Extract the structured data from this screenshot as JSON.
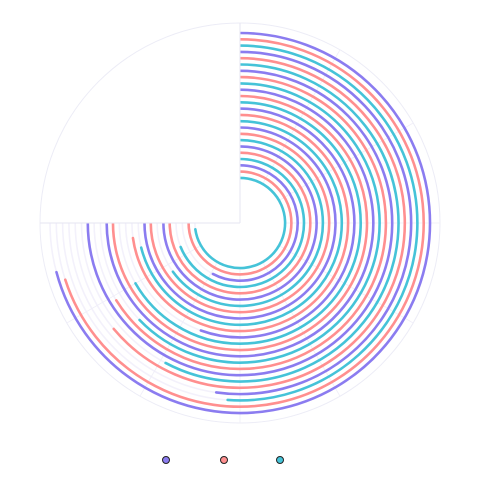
{
  "chart_data": {
    "type": "radial-bar",
    "title": "",
    "angle_range_deg": [
      0,
      360
    ],
    "start_angle_deg": 0,
    "direction": "clockwise",
    "grid": true,
    "legend_position": "bottom",
    "series": [
      {
        "color": "#8b7cf0",
        "values": [
          255,
          188,
          272,
          313,
          200,
          275,
          315,
          208,
          282,
          322,
          215,
          290,
          330,
          222,
          298,
          338,
          230,
          305,
          345,
          238
        ]
      },
      {
        "color": "#ff8f8f",
        "values": [
          252,
          230,
          238,
          280,
          262,
          300,
          290,
          270,
          312,
          288,
          272,
          318,
          296,
          278,
          326,
          302,
          284,
          332,
          308,
          290
        ]
      },
      {
        "color": "#45c3d8",
        "values": [
          184,
          208,
          226,
          240,
          256,
          234,
          248,
          262,
          278,
          244,
          256,
          268,
          285,
          250,
          262,
          274,
          292,
          256,
          268,
          282
        ]
      }
    ]
  }
}
